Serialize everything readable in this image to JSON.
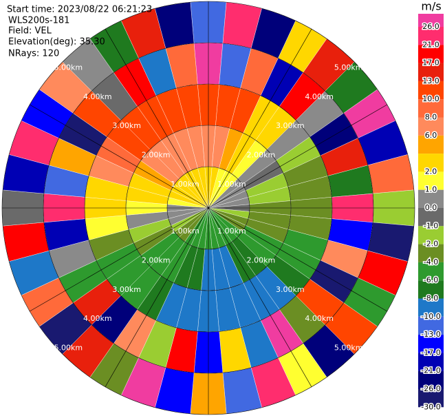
{
  "chart_data": {
    "type": "ppi",
    "start_time": "Start time: 2023/08/22 06:21:23",
    "instrument": "WLS200s-181",
    "field_label": "Field: VEL",
    "elevation": "Elevation(deg): 35.30",
    "nrays": "NRays: 120",
    "range_labels": [
      "1.00km",
      "2.00km",
      "3.00km",
      "4.00km",
      "5.00km"
    ],
    "azimuths": [
      0,
      10,
      20,
      30,
      40,
      50,
      60,
      70,
      80,
      90,
      100,
      110,
      120,
      130,
      140,
      150,
      160,
      170,
      180,
      190,
      200,
      210,
      220,
      230,
      240,
      250,
      260,
      270,
      280,
      290,
      300,
      310,
      320,
      330,
      340,
      350
    ],
    "field": [
      [
        2,
        2,
        1.5,
        1,
        1,
        0.5,
        0,
        0,
        0,
        -0.5,
        -1.5,
        -3,
        -4,
        -5,
        -5,
        -5,
        -5,
        -5,
        -5,
        -5,
        -5,
        -5,
        -4,
        -3,
        -2,
        0,
        0,
        0,
        1.5,
        2,
        2,
        2,
        2,
        2,
        2,
        2
      ],
      [
        7,
        7,
        5,
        2,
        1.5,
        0.5,
        -0.5,
        -1.5,
        -2,
        -3,
        -3,
        -3,
        -5,
        -6,
        -7,
        -8,
        -9,
        -9,
        -9,
        -8,
        -7,
        -6,
        -5,
        -5,
        -3,
        -1.5,
        0,
        1.5,
        2,
        3,
        5,
        7,
        7,
        7,
        7,
        7
      ],
      [
        12,
        12,
        11,
        3,
        2,
        0,
        -1.5,
        -3,
        -3,
        -3,
        -3,
        -5,
        -5,
        -7,
        -9,
        -9,
        -9,
        -9,
        -9,
        -9,
        -9,
        -7,
        -5,
        -5,
        -5,
        -3,
        1.5,
        2,
        3,
        7,
        9,
        11,
        12,
        12,
        12,
        12
      ],
      [
        26,
        -13,
        8,
        -21,
        17,
        0,
        -26,
        13,
        -8,
        21,
        -17,
        6,
        -30,
        10,
        -4,
        26,
        -10,
        2,
        -15,
        19,
        -2,
        7,
        -24,
        15,
        -6,
        0.5,
        -19,
        23,
        -11,
        4,
        -28,
        12,
        -1,
        18,
        -9,
        9
      ],
      [
        -13,
        21,
        -26,
        3,
        15,
        -8,
        26,
        -19,
        9,
        -2,
        -30,
        17,
        -6,
        11,
        -24,
        1.5,
        23,
        -11,
        5,
        -16,
        27,
        -4,
        13,
        -28,
        8,
        -9,
        19,
        -1,
        -21,
        25,
        -14,
        7,
        0,
        -7,
        16,
        -25
      ]
    ],
    "colorbar": {
      "unit": "m/s",
      "ticks": [
        {
          "value": 26,
          "label": "26.0"
        },
        {
          "value": 21,
          "label": "21.0"
        },
        {
          "value": 17,
          "label": "17.0"
        },
        {
          "value": 13,
          "label": "13.0"
        },
        {
          "value": 10,
          "label": "10.0"
        },
        {
          "value": 8,
          "label": "8.0"
        },
        {
          "value": 6,
          "label": "6.0"
        },
        {
          "value": 4,
          "label": null
        },
        {
          "value": 2,
          "label": "2.0"
        },
        {
          "value": 1,
          "label": "1.0"
        },
        {
          "value": 0,
          "label": "0.0"
        },
        {
          "value": -1,
          "label": "-1.0"
        },
        {
          "value": -2,
          "label": "-2.0"
        },
        {
          "value": -4,
          "label": "-4.0"
        },
        {
          "value": -6,
          "label": "-6.0"
        },
        {
          "value": -8,
          "label": "-8.0"
        },
        {
          "value": -10,
          "label": "-10.0"
        },
        {
          "value": -13,
          "label": "-13.0"
        },
        {
          "value": -17,
          "label": "-17.0"
        },
        {
          "value": -21,
          "label": "-21.0"
        },
        {
          "value": -26,
          "label": "-26.0"
        },
        {
          "value": -30,
          "label": "-30.0"
        }
      ],
      "colors": [
        "#f03ca0",
        "#ff2d6e",
        "#ff0000",
        "#e8200c",
        "#ff4500",
        "#ff6a3a",
        "#ff8a5c",
        "#ffa500",
        "#ffd700",
        "#ffff30",
        "#8a8a8a",
        "#6a6a6a",
        "#9acd32",
        "#6b8e23",
        "#2e9a2e",
        "#1f7a1f",
        "#1e78c8",
        "#4169e1",
        "#0000ff",
        "#0000b4",
        "#00007a",
        "#191970"
      ]
    }
  }
}
